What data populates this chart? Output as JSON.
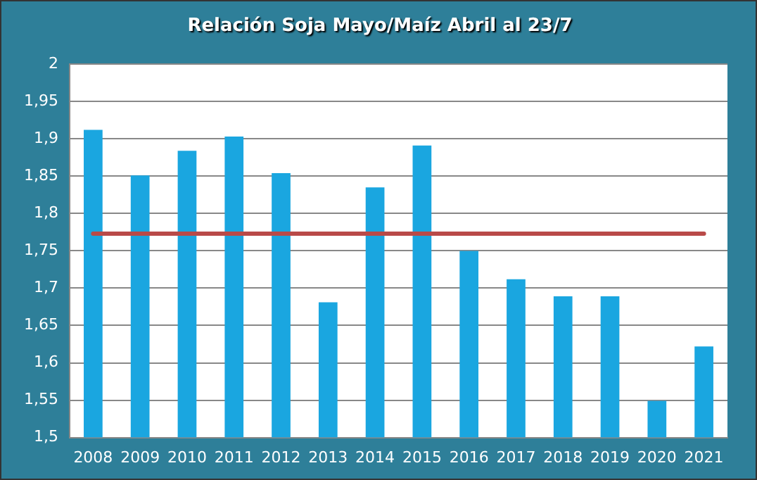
{
  "chart_data": {
    "type": "bar",
    "title": "Relación Soja Mayo/Maíz Abril al 23/7",
    "categories": [
      "2008",
      "2009",
      "2010",
      "2011",
      "2012",
      "2013",
      "2014",
      "2015",
      "2016",
      "2017",
      "2018",
      "2019",
      "2020",
      "2021"
    ],
    "values": [
      1.912,
      1.851,
      1.884,
      1.903,
      1.854,
      1.681,
      1.835,
      1.891,
      1.75,
      1.712,
      1.689,
      1.689,
      1.549,
      1.622
    ],
    "color": "#1aa6e0",
    "ylim": [
      1.5,
      2
    ],
    "yticks": [
      {
        "value": 1.5,
        "label": "1,5"
      },
      {
        "value": 1.55,
        "label": "1,55"
      },
      {
        "value": 1.6,
        "label": "1,6"
      },
      {
        "value": 1.65,
        "label": "1,65"
      },
      {
        "value": 1.7,
        "label": "1,7"
      },
      {
        "value": 1.75,
        "label": "1,75"
      },
      {
        "value": 1.8,
        "label": "1,8"
      },
      {
        "value": 1.85,
        "label": "1,85"
      },
      {
        "value": 1.9,
        "label": "1,9"
      },
      {
        "value": 1.95,
        "label": "1,95"
      },
      {
        "value": 2,
        "label": "2"
      }
    ],
    "grid": "y",
    "ref_lines": [
      {
        "axis": "y",
        "value": 1.773,
        "label": null,
        "color": "#b94a48"
      }
    ]
  }
}
